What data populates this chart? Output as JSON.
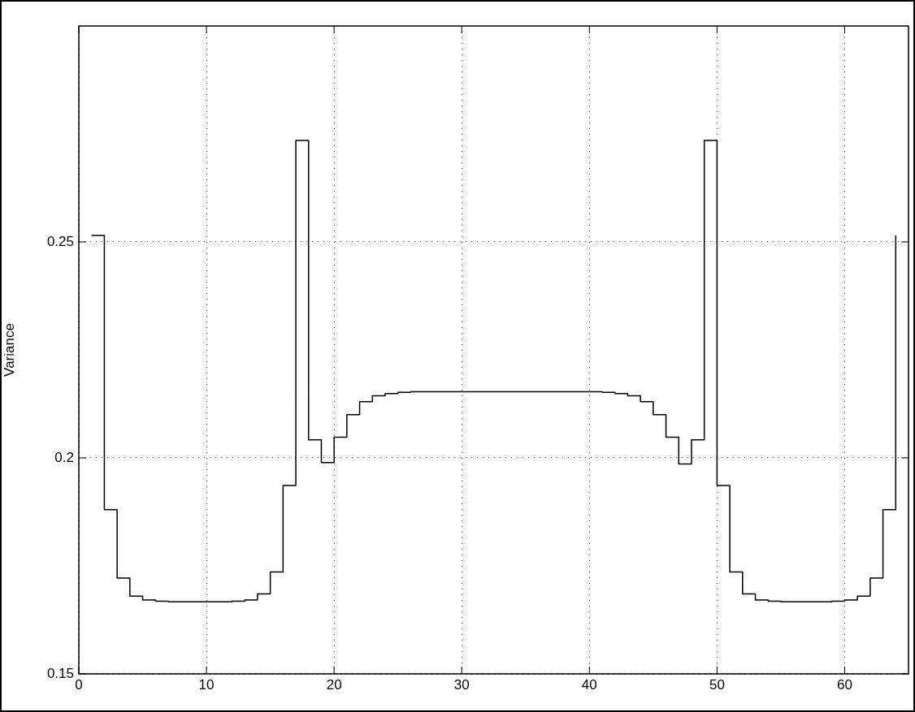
{
  "chart_data": {
    "type": "step",
    "ylabel": "Variance",
    "x": [
      1,
      2,
      3,
      4,
      5,
      6,
      7,
      8,
      9,
      10,
      11,
      12,
      13,
      14,
      15,
      16,
      17,
      18,
      19,
      20,
      21,
      22,
      23,
      24,
      25,
      26,
      27,
      28,
      29,
      30,
      31,
      32,
      33,
      34,
      35,
      36,
      37,
      38,
      39,
      40,
      41,
      42,
      43,
      44,
      45,
      46,
      47,
      48,
      49,
      50,
      51,
      52,
      53,
      54,
      55,
      56,
      57,
      58,
      59,
      60,
      61,
      62,
      63,
      64
    ],
    "values": [
      0.2515,
      0.188,
      0.1722,
      0.168,
      0.1671,
      0.1668,
      0.1667,
      0.1667,
      0.1667,
      0.1667,
      0.1667,
      0.1668,
      0.1671,
      0.1685,
      0.1736,
      0.1936,
      0.2735,
      0.2042,
      0.1989,
      0.2048,
      0.21,
      0.213,
      0.2144,
      0.2149,
      0.2152,
      0.2153,
      0.2153,
      0.2153,
      0.2153,
      0.2153,
      0.2153,
      0.2153,
      0.2153,
      0.2153,
      0.2153,
      0.2153,
      0.2153,
      0.2153,
      0.2153,
      0.2153,
      0.2152,
      0.2149,
      0.2144,
      0.213,
      0.21,
      0.2048,
      0.1986,
      0.2042,
      0.2735,
      0.1936,
      0.1736,
      0.1685,
      0.1671,
      0.1668,
      0.1667,
      0.1667,
      0.1667,
      0.1667,
      0.1668,
      0.1671,
      0.168,
      0.1722,
      0.188,
      0.2515
    ],
    "color": "#000000",
    "xlim": [
      0,
      65
    ],
    "xticks": [
      0,
      10,
      20,
      30,
      40,
      50,
      60
    ],
    "ylim": [
      0.15,
      0.3
    ],
    "yticks": [
      0.15,
      0.2,
      0.25
    ],
    "grid": true,
    "line_style": "solid",
    "marker": "none"
  }
}
